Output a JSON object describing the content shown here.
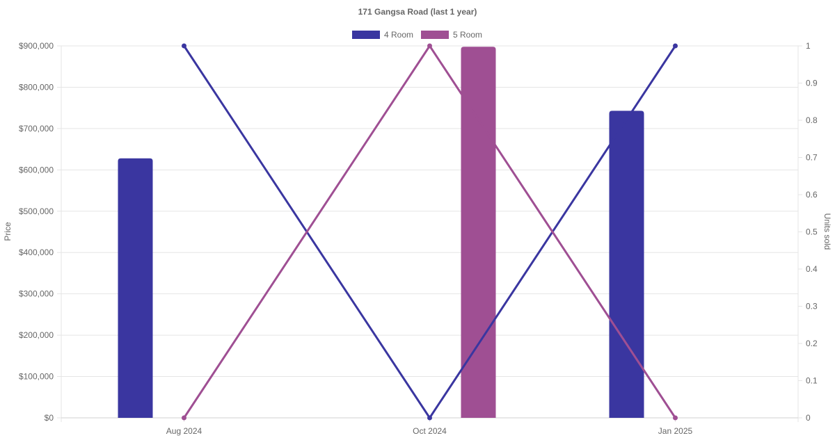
{
  "chart_data": {
    "type": "bar",
    "title": "171 Gangsa Road (last 1 year)",
    "categories": [
      "Aug 2024",
      "Oct 2024",
      "Jan 2025"
    ],
    "ylabel": "Price",
    "y2label": "Units sold",
    "ylim": [
      0,
      900000
    ],
    "y2lim": [
      0,
      1
    ],
    "yticks": [
      "$0",
      "$100,000",
      "$200,000",
      "$300,000",
      "$400,000",
      "$500,000",
      "$600,000",
      "$700,000",
      "$800,000",
      "$900,000"
    ],
    "y2ticks": [
      "0",
      "0.1",
      "0.2",
      "0.3",
      "0.4",
      "0.5",
      "0.6",
      "0.7",
      "0.8",
      "0.9",
      "1"
    ],
    "grid": true,
    "legend_position": "top-center",
    "series": [
      {
        "name": "4 Room",
        "color": "#3a36a0",
        "bar_values": [
          628000,
          null,
          743000
        ],
        "units_sold": [
          1,
          0,
          1
        ]
      },
      {
        "name": "5 Room",
        "color": "#9f4f93",
        "bar_values": [
          null,
          898000,
          null
        ],
        "units_sold": [
          0,
          1,
          0
        ]
      }
    ]
  }
}
